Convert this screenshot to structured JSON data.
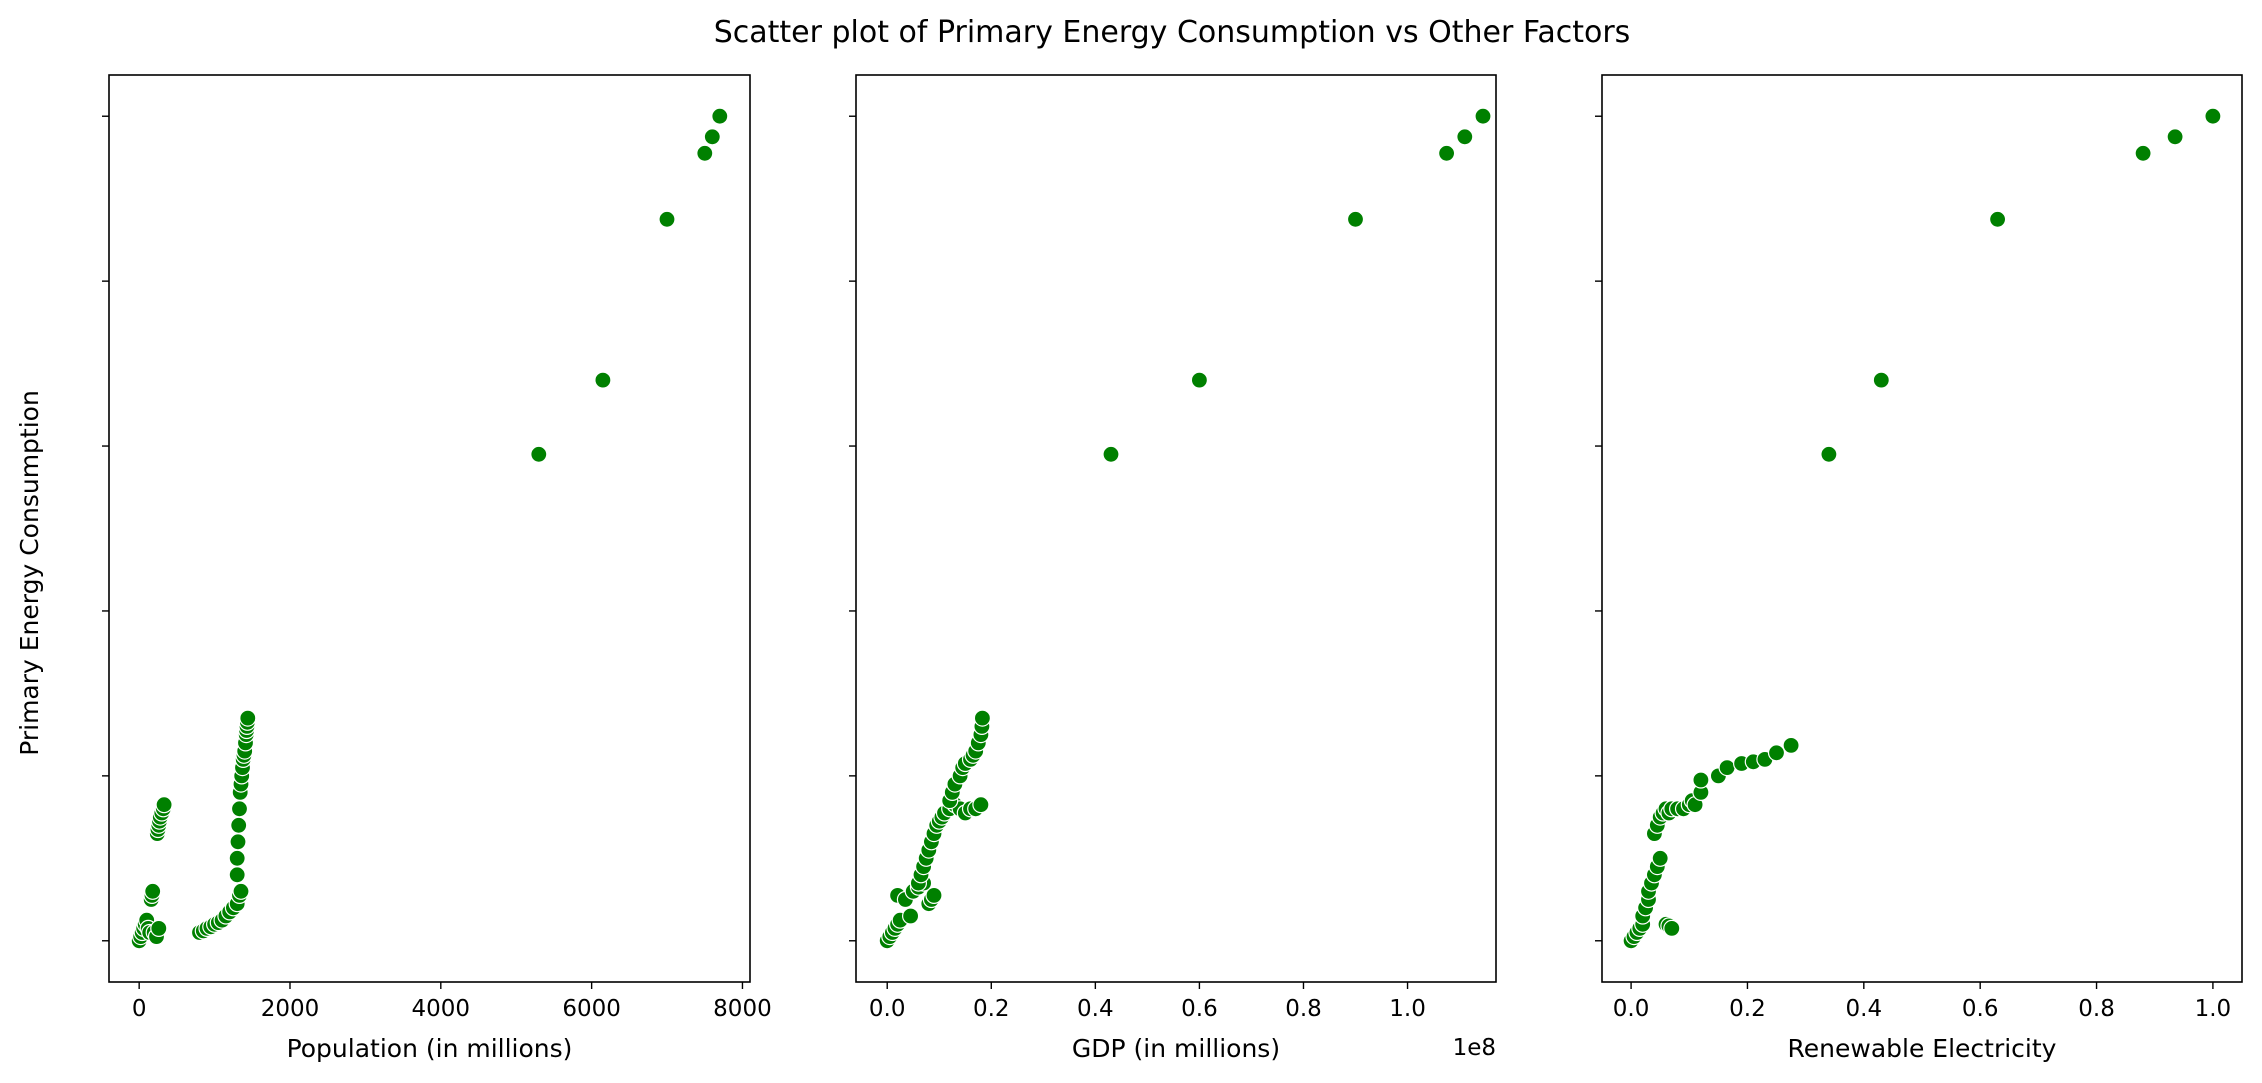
{
  "title": "Scatter plot of Primary Energy Consumption vs Other Factors",
  "ylabel": "Primary Energy Consumption",
  "marker_color": "#008000",
  "chart_data": [
    {
      "type": "scatter",
      "xlabel": "Population (in millions)",
      "offset_text": "",
      "xlim": [
        -400,
        8100
      ],
      "xticks": [
        0,
        2000,
        4000,
        6000,
        8000
      ],
      "xtick_labels": [
        "0",
        "2000",
        "4000",
        "6000",
        "8000"
      ],
      "ylim": [
        -0.05,
        1.05
      ],
      "grid": false,
      "points": [
        [
          0,
          0
        ],
        [
          20,
          0.005
        ],
        [
          40,
          0.01
        ],
        [
          60,
          0.015
        ],
        [
          80,
          0.02
        ],
        [
          100,
          0.025
        ],
        [
          120,
          0.015
        ],
        [
          140,
          0.01
        ],
        [
          160,
          0.05
        ],
        [
          170,
          0.055
        ],
        [
          180,
          0.06
        ],
        [
          200,
          0.01
        ],
        [
          230,
          0.005
        ],
        [
          260,
          0.015
        ],
        [
          240,
          0.13
        ],
        [
          250,
          0.135
        ],
        [
          260,
          0.14
        ],
        [
          270,
          0.145
        ],
        [
          280,
          0.15
        ],
        [
          300,
          0.155
        ],
        [
          320,
          0.16
        ],
        [
          330,
          0.165
        ],
        [
          800,
          0.01
        ],
        [
          850,
          0.012
        ],
        [
          900,
          0.015
        ],
        [
          950,
          0.017
        ],
        [
          1000,
          0.02
        ],
        [
          1050,
          0.022
        ],
        [
          1100,
          0.025
        ],
        [
          1150,
          0.03
        ],
        [
          1200,
          0.035
        ],
        [
          1250,
          0.04
        ],
        [
          1300,
          0.045
        ],
        [
          1330,
          0.055
        ],
        [
          1350,
          0.06
        ],
        [
          1300,
          0.08
        ],
        [
          1300,
          0.1
        ],
        [
          1310,
          0.12
        ],
        [
          1320,
          0.14
        ],
        [
          1330,
          0.16
        ],
        [
          1340,
          0.18
        ],
        [
          1350,
          0.19
        ],
        [
          1360,
          0.2
        ],
        [
          1370,
          0.21
        ],
        [
          1380,
          0.22
        ],
        [
          1390,
          0.225
        ],
        [
          1400,
          0.23
        ],
        [
          1410,
          0.24
        ],
        [
          1420,
          0.25
        ],
        [
          1425,
          0.255
        ],
        [
          1430,
          0.26
        ],
        [
          1435,
          0.265
        ],
        [
          1440,
          0.27
        ],
        [
          5300,
          0.59
        ],
        [
          6150,
          0.68
        ],
        [
          7000,
          0.875
        ],
        [
          7500,
          0.955
        ],
        [
          7600,
          0.975
        ],
        [
          7700,
          1.0
        ]
      ]
    },
    {
      "type": "scatter",
      "xlabel": "GDP (in millions)",
      "offset_text": "1e8",
      "xlim": [
        -0.06,
        1.17
      ],
      "xticks": [
        0.0,
        0.2,
        0.4,
        0.6,
        0.8,
        1.0
      ],
      "xtick_labels": [
        "0.0",
        "0.2",
        "0.4",
        "0.6",
        "0.8",
        "1.0"
      ],
      "ylim": [
        -0.05,
        1.05
      ],
      "grid": false,
      "points": [
        [
          0.0,
          0.0
        ],
        [
          0.005,
          0.005
        ],
        [
          0.01,
          0.01
        ],
        [
          0.015,
          0.015
        ],
        [
          0.02,
          0.02
        ],
        [
          0.025,
          0.025
        ],
        [
          0.02,
          0.055
        ],
        [
          0.035,
          0.05
        ],
        [
          0.045,
          0.03
        ],
        [
          0.05,
          0.06
        ],
        [
          0.06,
          0.065
        ],
        [
          0.07,
          0.07
        ],
        [
          0.08,
          0.045
        ],
        [
          0.085,
          0.05
        ],
        [
          0.09,
          0.055
        ],
        [
          0.06,
          0.07
        ],
        [
          0.065,
          0.08
        ],
        [
          0.07,
          0.09
        ],
        [
          0.075,
          0.1
        ],
        [
          0.08,
          0.11
        ],
        [
          0.085,
          0.12
        ],
        [
          0.09,
          0.13
        ],
        [
          0.095,
          0.14
        ],
        [
          0.1,
          0.145
        ],
        [
          0.105,
          0.15
        ],
        [
          0.11,
          0.155
        ],
        [
          0.12,
          0.16
        ],
        [
          0.13,
          0.165
        ],
        [
          0.14,
          0.16
        ],
        [
          0.15,
          0.155
        ],
        [
          0.16,
          0.16
        ],
        [
          0.17,
          0.16
        ],
        [
          0.18,
          0.165
        ],
        [
          0.12,
          0.17
        ],
        [
          0.125,
          0.18
        ],
        [
          0.13,
          0.19
        ],
        [
          0.14,
          0.2
        ],
        [
          0.145,
          0.21
        ],
        [
          0.15,
          0.215
        ],
        [
          0.16,
          0.22
        ],
        [
          0.165,
          0.225
        ],
        [
          0.17,
          0.23
        ],
        [
          0.175,
          0.24
        ],
        [
          0.18,
          0.25
        ],
        [
          0.182,
          0.26
        ],
        [
          0.183,
          0.27
        ],
        [
          0.43,
          0.59
        ],
        [
          0.6,
          0.68
        ],
        [
          0.9,
          0.875
        ],
        [
          1.075,
          0.955
        ],
        [
          1.11,
          0.975
        ],
        [
          1.145,
          1.0
        ]
      ]
    },
    {
      "type": "scatter",
      "xlabel": "Renewable Electricity",
      "offset_text": "",
      "xlim": [
        -0.05,
        1.05
      ],
      "xticks": [
        0.0,
        0.2,
        0.4,
        0.6,
        0.8,
        1.0
      ],
      "xtick_labels": [
        "0.0",
        "0.2",
        "0.4",
        "0.6",
        "0.8",
        "1.0"
      ],
      "ylim": [
        -0.05,
        1.05
      ],
      "grid": false,
      "points": [
        [
          0.0,
          0.0
        ],
        [
          0.005,
          0.005
        ],
        [
          0.01,
          0.01
        ],
        [
          0.015,
          0.015
        ],
        [
          0.02,
          0.02
        ],
        [
          0.02,
          0.03
        ],
        [
          0.025,
          0.04
        ],
        [
          0.03,
          0.05
        ],
        [
          0.03,
          0.06
        ],
        [
          0.035,
          0.07
        ],
        [
          0.04,
          0.08
        ],
        [
          0.045,
          0.09
        ],
        [
          0.05,
          0.1
        ],
        [
          0.06,
          0.02
        ],
        [
          0.065,
          0.018
        ],
        [
          0.07,
          0.015
        ],
        [
          0.04,
          0.13
        ],
        [
          0.045,
          0.14
        ],
        [
          0.05,
          0.15
        ],
        [
          0.055,
          0.155
        ],
        [
          0.06,
          0.16
        ],
        [
          0.065,
          0.155
        ],
        [
          0.07,
          0.16
        ],
        [
          0.08,
          0.16
        ],
        [
          0.09,
          0.16
        ],
        [
          0.1,
          0.165
        ],
        [
          0.105,
          0.17
        ],
        [
          0.11,
          0.165
        ],
        [
          0.12,
          0.18
        ],
        [
          0.12,
          0.195
        ],
        [
          0.15,
          0.2
        ],
        [
          0.165,
          0.21
        ],
        [
          0.19,
          0.215
        ],
        [
          0.21,
          0.217
        ],
        [
          0.23,
          0.22
        ],
        [
          0.25,
          0.228
        ],
        [
          0.275,
          0.237
        ],
        [
          0.34,
          0.59
        ],
        [
          0.43,
          0.68
        ],
        [
          0.63,
          0.875
        ],
        [
          0.88,
          0.955
        ],
        [
          0.935,
          0.975
        ],
        [
          1.0,
          1.0
        ]
      ]
    }
  ]
}
